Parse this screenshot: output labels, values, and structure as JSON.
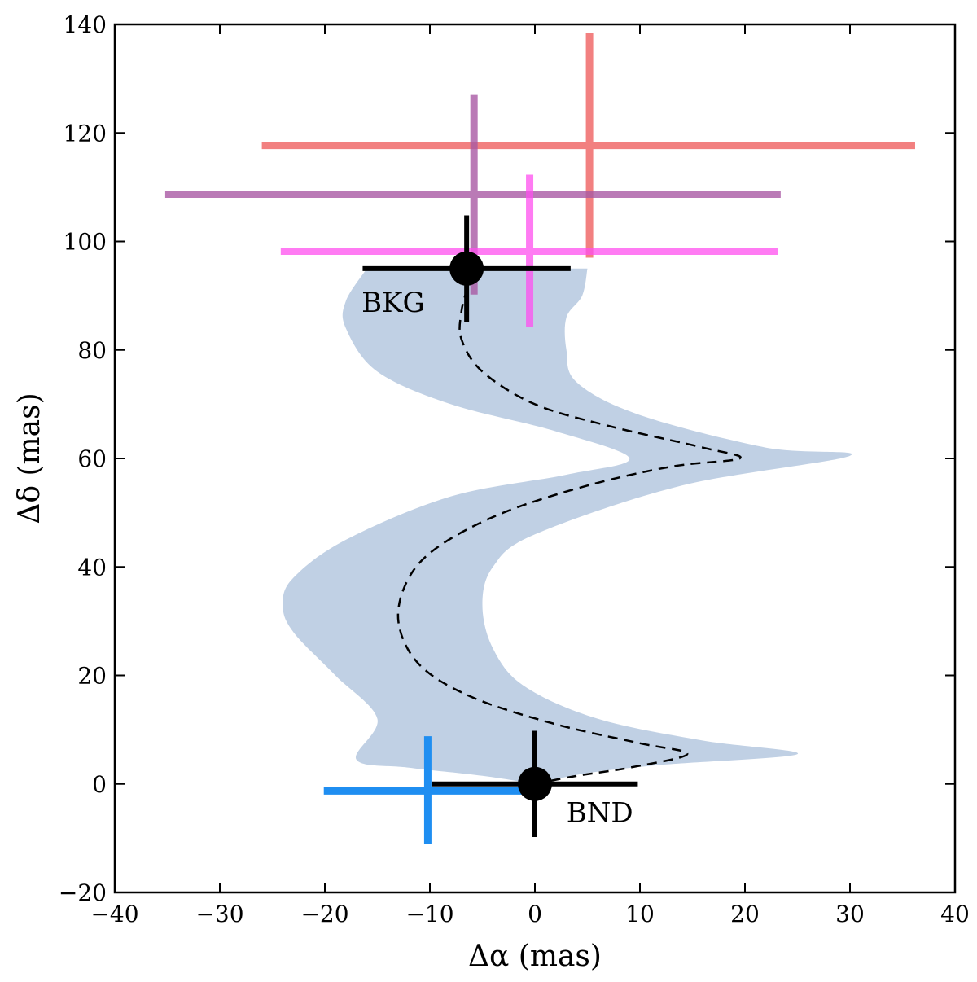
{
  "chart_data": {
    "type": "scatter",
    "xlabel": "Δα (mas)",
    "ylabel": "Δδ (mas)",
    "xlim": [
      -40,
      40
    ],
    "ylim": [
      -20,
      140
    ],
    "xticks": [
      -40,
      -30,
      -20,
      -10,
      0,
      10,
      20,
      30,
      40
    ],
    "yticks": [
      -20,
      0,
      20,
      40,
      60,
      80,
      100,
      120,
      140
    ],
    "xtick_labels": [
      "−40",
      "−30",
      "−20",
      "−10",
      "0",
      "10",
      "20",
      "30",
      "40"
    ],
    "ytick_labels": [
      "−20",
      "0",
      "20",
      "40",
      "60",
      "80",
      "100",
      "120",
      "140"
    ],
    "grid": false,
    "band": {
      "color": "#c0d0e4",
      "left": [
        [
          0,
          0
        ],
        [
          -5,
          1.5
        ],
        [
          -12,
          3
        ],
        [
          -17,
          4.5
        ],
        [
          -15,
          12
        ],
        [
          -19,
          20
        ],
        [
          -23,
          28
        ],
        [
          -24,
          33
        ],
        [
          -23,
          38
        ],
        [
          -18,
          45
        ],
        [
          -8,
          53
        ],
        [
          3,
          57
        ],
        [
          9,
          60
        ],
        [
          2,
          65
        ],
        [
          -8,
          70
        ],
        [
          -15,
          76
        ],
        [
          -18,
          84
        ],
        [
          -18,
          89
        ],
        [
          -16,
          95
        ]
      ],
      "right": [
        [
          0,
          0
        ],
        [
          5,
          2
        ],
        [
          12,
          3.5
        ],
        [
          25,
          5.5
        ],
        [
          16,
          8
        ],
        [
          6,
          12
        ],
        [
          -1,
          18
        ],
        [
          -4,
          25
        ],
        [
          -5,
          33
        ],
        [
          -4,
          40
        ],
        [
          0,
          46
        ],
        [
          14,
          55
        ],
        [
          30,
          60.5
        ],
        [
          22,
          62
        ],
        [
          10,
          68
        ],
        [
          4,
          74
        ],
        [
          3,
          80
        ],
        [
          3,
          86
        ],
        [
          4.5,
          90
        ],
        [
          5,
          95
        ]
      ]
    },
    "track": {
      "points": [
        [
          0,
          0
        ],
        [
          4,
          1.5
        ],
        [
          9,
          3
        ],
        [
          14.5,
          5.5
        ],
        [
          10,
          7.5
        ],
        [
          2,
          11
        ],
        [
          -6,
          16
        ],
        [
          -11,
          22
        ],
        [
          -13,
          30
        ],
        [
          -12,
          38
        ],
        [
          -9,
          44
        ],
        [
          -3,
          50
        ],
        [
          5,
          55
        ],
        [
          13,
          58.5
        ],
        [
          19.5,
          60
        ],
        [
          16,
          62
        ],
        [
          7,
          66
        ],
        [
          0,
          70
        ],
        [
          -5,
          76
        ],
        [
          -7,
          82
        ],
        [
          -7,
          87
        ],
        [
          -6.5,
          91
        ]
      ],
      "dashed": true,
      "color": "#000000"
    },
    "error_crosses": [
      {
        "x": 5.2,
        "y": 117.7,
        "x_lo": -26,
        "x_hi": 36.2,
        "y_lo": 97,
        "y_hi": 138.4,
        "color": "#f06a6a",
        "opacity": 0.85
      },
      {
        "x": -5.8,
        "y": 108.7,
        "x_lo": -35.2,
        "x_hi": 23.4,
        "y_lo": 90.2,
        "y_hi": 127,
        "color": "#a95aa4",
        "opacity": 0.8
      },
      {
        "x": -0.5,
        "y": 98.2,
        "x_lo": -24.2,
        "x_hi": 23.1,
        "y_lo": 84.3,
        "y_hi": 112.3,
        "color": "#ff4ff0",
        "opacity": 0.75
      },
      {
        "x": -10.2,
        "y": -1.3,
        "x_lo": -20.1,
        "x_hi": -0.2,
        "y_lo": -11,
        "y_hi": 8.8,
        "color": "#1f8ef1",
        "opacity": 1.0
      }
    ],
    "markers": [
      {
        "x": -6.5,
        "y": 95,
        "x_lo": -16.4,
        "x_hi": 3.4,
        "y_lo": 85.2,
        "y_hi": 104.8,
        "label": "BKG",
        "label_dx": -10,
        "label_dy": -8
      },
      {
        "x": 0,
        "y": 0,
        "x_lo": -9.8,
        "x_hi": 9.8,
        "y_lo": -9.8,
        "y_hi": 9.8,
        "label": "BND",
        "label_dx": 3,
        "label_dy": -7
      }
    ]
  }
}
